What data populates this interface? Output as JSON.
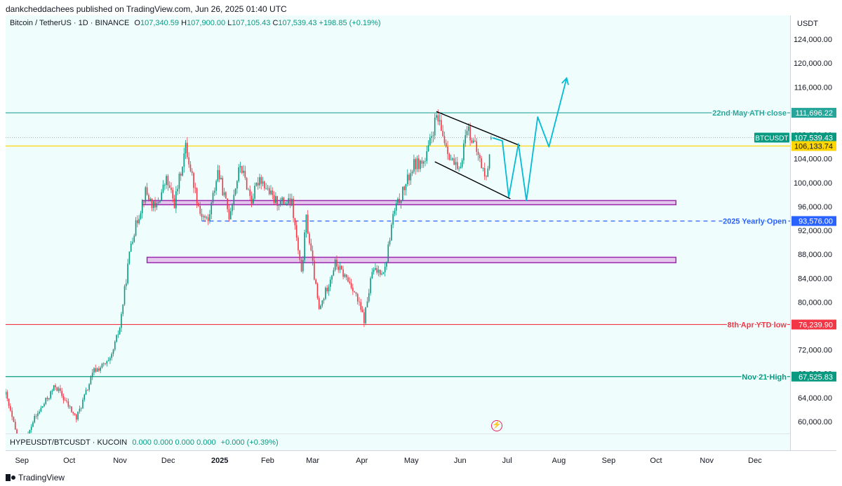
{
  "header": {
    "published": "dankcheddachees published on TradingView.com, Jun 26, 2025 01:40 UTC"
  },
  "legend": {
    "symbol": "Bitcoin / TetherUS · 1D · BINANCE",
    "open_label": "O",
    "open": "107,340.59",
    "high_label": "H",
    "high": "107,900.00",
    "low_label": "L",
    "low": "107,105.43",
    "close_label": "C",
    "close": "107,539.43",
    "change": "+198.85 (+0.19%)"
  },
  "indicator": {
    "name": "HYPEUSDT/BTCUSDT · KUCOIN",
    "values": "0.000  0.000  0.000  0.000",
    "change": "+0.000 (+0.39%)"
  },
  "price_axis": {
    "currency": "USDT"
  },
  "footer": {
    "brand": "TradingView"
  },
  "colors": {
    "bg": "#f0fdfd",
    "up": "#089981",
    "down": "#f23645",
    "ath": "#26a69a",
    "yearly": "#2962ff",
    "ytdlow": "#f23645",
    "nov": "#089981",
    "current": "#ffd600",
    "zone_fill": "#e1bee7",
    "zone_border": "#9c27b0",
    "projection": "#00bcd4"
  },
  "chart_data": {
    "type": "candlestick",
    "symbol": "BTCUSDT",
    "ylim": [
      58000,
      128000
    ],
    "price_ticks": [
      60000,
      64000,
      68000,
      72000,
      76000,
      80000,
      84000,
      88000,
      92000,
      96000,
      100000,
      104000,
      108000,
      112000,
      116000,
      120000,
      124000
    ],
    "price_tick_labels": [
      "60,000.00",
      "64,000.00",
      "68,000.00",
      "72,000.00",
      "76,000.00",
      "80,000.00",
      "84,000.00",
      "88,000.00",
      "92,000.00",
      "96,000.00",
      "100,000.00",
      "104,000.00",
      "108,000.00",
      "112,000.00",
      "116,000.00",
      "120,000.00",
      "124,000.00"
    ],
    "x_start": "2024-08-27",
    "x_end": "2025-12-28",
    "months": [
      {
        "label": "Sep",
        "date": "2024-09-01",
        "bold": false
      },
      {
        "label": "Oct",
        "date": "2024-10-01",
        "bold": false
      },
      {
        "label": "Nov",
        "date": "2024-11-01",
        "bold": false
      },
      {
        "label": "Dec",
        "date": "2024-12-01",
        "bold": false
      },
      {
        "label": "2025",
        "date": "2025-01-01",
        "bold": true
      },
      {
        "label": "Feb",
        "date": "2025-02-01",
        "bold": false
      },
      {
        "label": "Mar",
        "date": "2025-03-01",
        "bold": false
      },
      {
        "label": "Apr",
        "date": "2025-04-01",
        "bold": false
      },
      {
        "label": "May",
        "date": "2025-05-01",
        "bold": false
      },
      {
        "label": "Jun",
        "date": "2025-06-01",
        "bold": false
      },
      {
        "label": "Jul",
        "date": "2025-07-01",
        "bold": false
      },
      {
        "label": "Aug",
        "date": "2025-08-01",
        "bold": false
      },
      {
        "label": "Sep",
        "date": "2025-09-01",
        "bold": false
      },
      {
        "label": "Oct",
        "date": "2025-10-01",
        "bold": false
      },
      {
        "label": "Nov",
        "date": "2025-11-01",
        "bold": false
      },
      {
        "label": "Dec",
        "date": "2025-12-01",
        "bold": false
      }
    ],
    "price_path": [
      [
        "2024-08-27",
        64500
      ],
      [
        "2024-09-06",
        54500
      ],
      [
        "2024-09-13",
        60000
      ],
      [
        "2024-09-27",
        66000
      ],
      [
        "2024-10-10",
        60500
      ],
      [
        "2024-10-21",
        68500
      ],
      [
        "2024-10-31",
        70000
      ],
      [
        "2024-11-06",
        75800
      ],
      [
        "2024-11-13",
        90000
      ],
      [
        "2024-11-22",
        98500
      ],
      [
        "2024-11-28",
        95500
      ],
      [
        "2024-12-05",
        100500
      ],
      [
        "2024-12-10",
        96500
      ],
      [
        "2024-12-17",
        106000
      ],
      [
        "2024-12-26",
        95000
      ],
      [
        "2024-12-31",
        93500
      ],
      [
        "2025-01-06",
        102000
      ],
      [
        "2025-01-13",
        94500
      ],
      [
        "2025-01-20",
        103000
      ],
      [
        "2025-01-27",
        97000
      ],
      [
        "2025-02-01",
        101000
      ],
      [
        "2025-02-10",
        97000
      ],
      [
        "2025-02-21",
        96500
      ],
      [
        "2025-02-27",
        84500
      ],
      [
        "2025-03-02",
        94000
      ],
      [
        "2025-03-10",
        78500
      ],
      [
        "2025-03-20",
        86500
      ],
      [
        "2025-03-31",
        82500
      ],
      [
        "2025-04-07",
        77000
      ],
      [
        "2025-04-12",
        85000
      ],
      [
        "2025-04-20",
        85500
      ],
      [
        "2025-04-25",
        94500
      ],
      [
        "2025-05-08",
        103000
      ],
      [
        "2025-05-15",
        103500
      ],
      [
        "2025-05-22",
        111000
      ],
      [
        "2025-05-31",
        104000
      ],
      [
        "2025-06-05",
        101500
      ],
      [
        "2025-06-10",
        109500
      ],
      [
        "2025-06-17",
        104500
      ],
      [
        "2025-06-22",
        100500
      ],
      [
        "2025-06-25",
        107539
      ]
    ],
    "candle_count": 303,
    "last_candle": {
      "date": "2025-06-25",
      "open": 107340.59,
      "high": 107900.0,
      "low": 107105.43,
      "close": 107539.43
    },
    "horizontal_lines": [
      {
        "label": "22nd May ATH close",
        "price": 111696.22,
        "price_label": "111,696.22",
        "color": "#26a69a",
        "style": "solid"
      },
      {
        "label": "2025 Yearly Open",
        "price": 93576.0,
        "price_label": "93,576.00",
        "color": "#2962ff",
        "style": "dashed",
        "start": "2024-12-27"
      },
      {
        "label": "8th Apr YTD low",
        "price": 76239.9,
        "price_label": "76,239.90",
        "color": "#f23645",
        "style": "solid"
      },
      {
        "label": "Nov 21 High",
        "price": 67525.83,
        "price_label": "67,525.83",
        "color": "#089981",
        "style": "solid"
      }
    ],
    "current_price": {
      "label": "BTCUSDT",
      "price": 107539.43,
      "price_label": "107,539.43"
    },
    "reference_level": {
      "price": 106133.74,
      "price_label": "106,133.74"
    },
    "zones": [
      {
        "from": 96300,
        "to": 97000,
        "start": "2024-11-20",
        "end": "2025-10-18"
      },
      {
        "from": 86600,
        "to": 87500,
        "start": "2024-11-23",
        "end": "2025-10-18"
      }
    ],
    "channel_lines": [
      {
        "from": [
          "2025-05-22",
          111900
        ],
        "to": [
          "2025-07-13",
          106200
        ]
      },
      {
        "from": [
          "2025-05-21",
          103500
        ],
        "to": [
          "2025-07-07",
          97300
        ]
      }
    ],
    "projection": [
      [
        "2025-06-26",
        107500
      ],
      [
        "2025-07-02",
        107000
      ],
      [
        "2025-07-06",
        97600
      ],
      [
        "2025-07-12",
        106500
      ],
      [
        "2025-07-17",
        97000
      ],
      [
        "2025-07-24",
        111000
      ],
      [
        "2025-07-31",
        106000
      ],
      [
        "2025-08-11",
        117500
      ]
    ]
  }
}
